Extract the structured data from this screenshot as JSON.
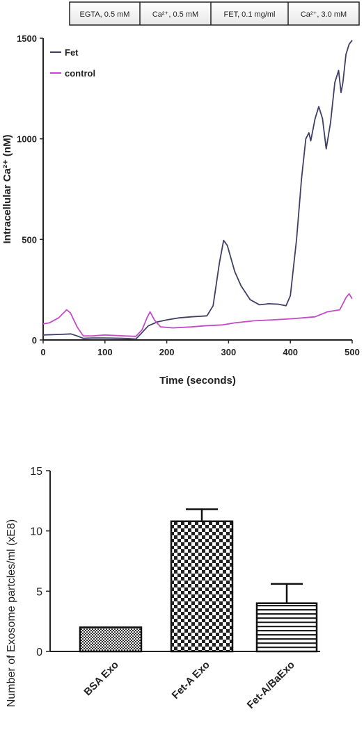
{
  "chart_data": [
    {
      "type": "line",
      "header_bar": [
        "EGTA, 0.5 mM",
        "Ca²⁺, 0.5 mM",
        "FET, 0.1 mg/ml",
        "Ca²⁺, 3.0 mM"
      ],
      "xlabel": "Time (seconds)",
      "ylabel": "Intracellular Ca²⁺ (nM)",
      "xlim": [
        0,
        500
      ],
      "ylim": [
        0,
        1500
      ],
      "xticks": [
        0,
        100,
        200,
        300,
        400,
        500
      ],
      "yticks": [
        0,
        500,
        1000,
        1500
      ],
      "legend_position": "top-left",
      "series": [
        {
          "name": "Fet",
          "color": "#3f3f66",
          "points": [
            [
              0,
              25
            ],
            [
              30,
              28
            ],
            [
              45,
              30
            ],
            [
              55,
              20
            ],
            [
              65,
              8
            ],
            [
              80,
              10
            ],
            [
              100,
              10
            ],
            [
              130,
              8
            ],
            [
              150,
              5
            ],
            [
              158,
              30
            ],
            [
              170,
              70
            ],
            [
              185,
              90
            ],
            [
              200,
              100
            ],
            [
              220,
              110
            ],
            [
              240,
              115
            ],
            [
              265,
              120
            ],
            [
              275,
              170
            ],
            [
              285,
              380
            ],
            [
              292,
              495
            ],
            [
              298,
              470
            ],
            [
              310,
              340
            ],
            [
              320,
              270
            ],
            [
              335,
              200
            ],
            [
              350,
              175
            ],
            [
              365,
              180
            ],
            [
              380,
              178
            ],
            [
              393,
              170
            ],
            [
              400,
              220
            ],
            [
              410,
              500
            ],
            [
              418,
              800
            ],
            [
              425,
              1000
            ],
            [
              430,
              1030
            ],
            [
              433,
              990
            ],
            [
              440,
              1100
            ],
            [
              446,
              1160
            ],
            [
              452,
              1100
            ],
            [
              458,
              950
            ],
            [
              465,
              1080
            ],
            [
              472,
              1280
            ],
            [
              478,
              1340
            ],
            [
              482,
              1230
            ],
            [
              485,
              1280
            ],
            [
              490,
              1420
            ],
            [
              495,
              1470
            ],
            [
              500,
              1490
            ]
          ]
        },
        {
          "name": "control",
          "color": "#c34bc6",
          "points": [
            [
              0,
              80
            ],
            [
              10,
              85
            ],
            [
              25,
              110
            ],
            [
              38,
              150
            ],
            [
              44,
              135
            ],
            [
              55,
              65
            ],
            [
              65,
              20
            ],
            [
              80,
              20
            ],
            [
              100,
              25
            ],
            [
              130,
              20
            ],
            [
              150,
              18
            ],
            [
              160,
              50
            ],
            [
              168,
              110
            ],
            [
              173,
              140
            ],
            [
              180,
              100
            ],
            [
              190,
              65
            ],
            [
              210,
              60
            ],
            [
              240,
              65
            ],
            [
              260,
              70
            ],
            [
              290,
              75
            ],
            [
              310,
              85
            ],
            [
              340,
              95
            ],
            [
              370,
              100
            ],
            [
              400,
              105
            ],
            [
              420,
              110
            ],
            [
              440,
              115
            ],
            [
              460,
              140
            ],
            [
              480,
              150
            ],
            [
              490,
              210
            ],
            [
              495,
              230
            ],
            [
              500,
              205
            ]
          ]
        }
      ]
    },
    {
      "type": "bar",
      "categories": [
        "BSA Exo",
        "Fet-A Exo",
        "Fet-A/BaExo"
      ],
      "values": [
        2.0,
        10.8,
        4.0
      ],
      "errors": [
        0,
        1.0,
        1.6
      ],
      "patterns": [
        "crosshatch",
        "checkerboard",
        "horizontal-lines"
      ],
      "ylabel": "Number of Exosome partcles/ml (xE8)",
      "ylim": [
        0,
        15
      ],
      "yticks": [
        0,
        5,
        10,
        15
      ]
    }
  ]
}
